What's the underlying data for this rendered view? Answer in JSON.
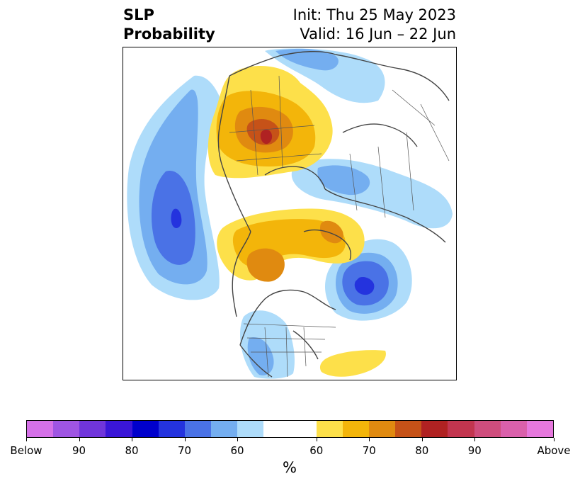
{
  "header": {
    "variable": "SLP",
    "product": "Probability",
    "init": "Init: Thu 25 May 2023",
    "valid": "Valid: 16 Jun – 22 Jun"
  },
  "colorbar": {
    "unit": "%",
    "below_colors": [
      "#d570e8",
      "#9f55e3",
      "#7035db",
      "#3a16d8",
      "#0000cc",
      "#2433de",
      "#4a72e6",
      "#74aef0",
      "#aedcfa"
    ],
    "neutral_color": "#ffffff",
    "above_colors": [
      "#fde04a",
      "#f3b50a",
      "#e08a10",
      "#c65218",
      "#b02222",
      "#c2354f",
      "#cf4d7d",
      "#da60ab",
      "#e678dd"
    ],
    "tick_labels": [
      "Below",
      "90",
      "80",
      "70",
      "60",
      "60",
      "70",
      "80",
      "90",
      "Above"
    ]
  },
  "map": {
    "projection": "north-polar-stereographic",
    "fill_colors": {
      "below_60": "#aedcfa",
      "below_65": "#74aef0",
      "below_70": "#4a72e6",
      "below_75": "#2433de",
      "above_60": "#fde04a",
      "above_65": "#f3b50a",
      "above_70": "#e08a10",
      "above_75": "#c65218",
      "above_80": "#b02222"
    },
    "coastline_color": "#444444"
  }
}
